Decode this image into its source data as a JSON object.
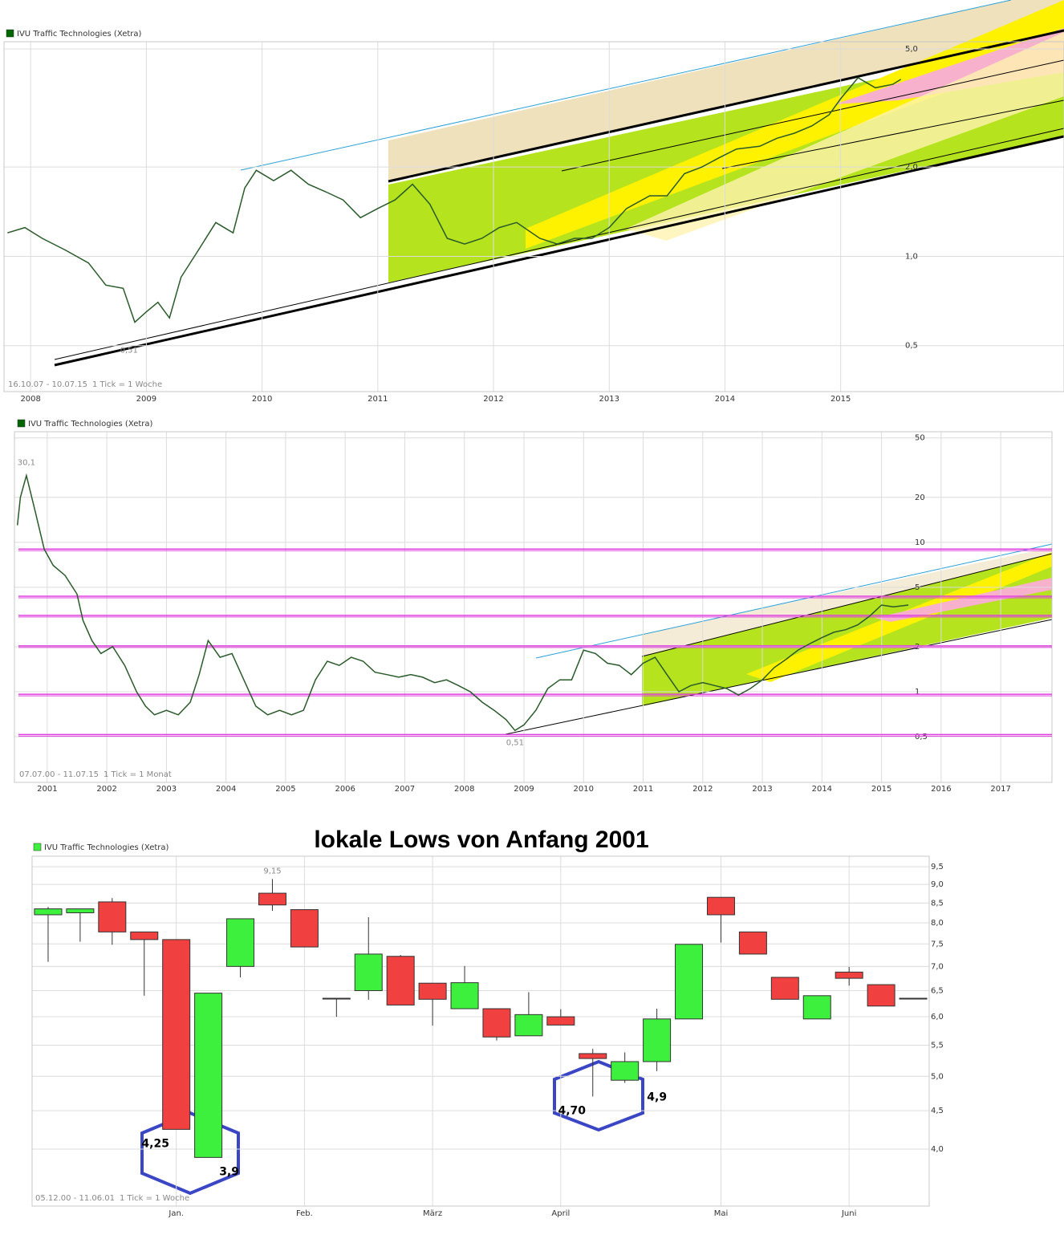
{
  "chart_data": [
    {
      "type": "line",
      "legend": "IVU Traffic Technologies (Xetra)",
      "note": "16.10.07 - 10.07.15",
      "tick_note": "1 Tick = 1 Woche",
      "log_scale": true,
      "grid": true,
      "x": [
        2007.8,
        2007.95,
        2008.1,
        2008.3,
        2008.5,
        2008.65,
        2008.8,
        2008.9,
        2009.0,
        2009.1,
        2009.2,
        2009.3,
        2009.45,
        2009.6,
        2009.75,
        2009.85,
        2009.95,
        2010.1,
        2010.25,
        2010.4,
        2010.55,
        2010.7,
        2010.85,
        2011.0,
        2011.15,
        2011.3,
        2011.45,
        2011.6,
        2011.75,
        2011.9,
        2012.05,
        2012.2,
        2012.4,
        2012.55,
        2012.7,
        2012.85,
        2013.0,
        2013.15,
        2013.35,
        2013.5,
        2013.65,
        2013.8,
        2013.95,
        2014.1,
        2014.3,
        2014.45,
        2014.6,
        2014.75,
        2014.9,
        2015.0,
        2015.15,
        2015.3,
        2015.45,
        2015.52
      ],
      "series": [
        {
          "name": "IVU Traffic Technologies (Xetra)",
          "color": "#2a5a2a",
          "values": [
            1.2,
            1.25,
            1.15,
            1.05,
            0.95,
            0.8,
            0.78,
            0.6,
            0.65,
            0.7,
            0.62,
            0.85,
            1.05,
            1.3,
            1.2,
            1.7,
            1.95,
            1.8,
            1.95,
            1.75,
            1.65,
            1.55,
            1.35,
            1.45,
            1.55,
            1.75,
            1.5,
            1.15,
            1.1,
            1.15,
            1.25,
            1.3,
            1.15,
            1.1,
            1.15,
            1.15,
            1.25,
            1.45,
            1.6,
            1.6,
            1.9,
            2.0,
            2.15,
            2.3,
            2.35,
            2.5,
            2.6,
            2.75,
            3.0,
            3.4,
            4.0,
            3.7,
            3.8,
            3.95
          ]
        }
      ],
      "xlim": [
        2007.77,
        2016.93
      ],
      "xticks": [
        2008,
        2009,
        2010,
        2011,
        2012,
        2013,
        2014,
        2015
      ],
      "ylim": [
        0.35,
        5.29
      ],
      "yticks": [
        {
          "value": 0.5,
          "label": "0,5"
        },
        {
          "value": 1,
          "label": "1,0"
        },
        {
          "value": 2,
          "label": "2,0"
        },
        {
          "value": 5,
          "label": "5,0"
        }
      ],
      "annotations": [
        {
          "text": "0,51",
          "x": 2008.85,
          "y": 0.51
        }
      ]
    },
    {
      "type": "line",
      "legend": "IVU Traffic Technologies (Xetra)",
      "note": "07.07.00 - 11.07.15",
      "tick_note": "1 Tick = 1 Monat",
      "log_scale": true,
      "grid": true,
      "x": [
        2000.5,
        2000.55,
        2000.65,
        2000.8,
        2000.95,
        2001.1,
        2001.3,
        2001.5,
        2001.6,
        2001.75,
        2001.9,
        2002.1,
        2002.3,
        2002.5,
        2002.65,
        2002.8,
        2003.0,
        2003.2,
        2003.4,
        2003.55,
        2003.7,
        2003.9,
        2004.1,
        2004.3,
        2004.5,
        2004.7,
        2004.9,
        2005.1,
        2005.3,
        2005.5,
        2005.7,
        2005.9,
        2006.1,
        2006.3,
        2006.5,
        2006.7,
        2006.9,
        2007.1,
        2007.3,
        2007.5,
        2007.7,
        2007.9,
        2008.1,
        2008.3,
        2008.5,
        2008.7,
        2008.85,
        2009.0,
        2009.2,
        2009.4,
        2009.6,
        2009.8,
        2010.0,
        2010.2,
        2010.4,
        2010.6,
        2010.8,
        2011.0,
        2011.2,
        2011.4,
        2011.6,
        2011.8,
        2012.0,
        2012.2,
        2012.4,
        2012.6,
        2012.8,
        2013.0,
        2013.2,
        2013.4,
        2013.6,
        2013.8,
        2014.0,
        2014.2,
        2014.4,
        2014.6,
        2014.8,
        2015.0,
        2015.2,
        2015.45
      ],
      "series": [
        {
          "name": "IVU Traffic Technologies (Xetra)",
          "color": "#2a5a2a",
          "values": [
            13,
            20,
            28,
            16,
            9,
            7,
            6,
            4.5,
            3,
            2.2,
            1.8,
            2.0,
            1.5,
            1.0,
            0.8,
            0.7,
            0.75,
            0.7,
            0.85,
            1.3,
            2.2,
            1.7,
            1.8,
            1.2,
            0.8,
            0.7,
            0.75,
            0.7,
            0.75,
            1.2,
            1.6,
            1.5,
            1.7,
            1.6,
            1.35,
            1.3,
            1.25,
            1.3,
            1.25,
            1.15,
            1.2,
            1.1,
            1.0,
            0.85,
            0.75,
            0.65,
            0.55,
            0.6,
            0.75,
            1.05,
            1.2,
            1.2,
            1.9,
            1.8,
            1.55,
            1.5,
            1.3,
            1.55,
            1.7,
            1.3,
            1.0,
            1.1,
            1.15,
            1.1,
            1.05,
            0.95,
            1.05,
            1.2,
            1.45,
            1.65,
            1.9,
            2.1,
            2.3,
            2.5,
            2.6,
            2.8,
            3.2,
            3.8,
            3.7,
            3.8
          ]
        }
      ],
      "xlim": [
        2000.45,
        2017.86
      ],
      "xticks": [
        2001,
        2002,
        2003,
        2004,
        2005,
        2006,
        2007,
        2008,
        2009,
        2010,
        2011,
        2012,
        2013,
        2014,
        2015,
        2016,
        2017
      ],
      "ylim": [
        0.247,
        55
      ],
      "yticks": [
        {
          "value": 0.5,
          "label": "0,5"
        },
        1,
        2,
        5,
        10,
        20,
        50
      ],
      "levels": [
        8.9,
        4.3,
        3.2,
        2.0,
        0.95,
        0.51
      ],
      "level_color": "#e040e0",
      "annotations": [
        {
          "text": "30,1",
          "x": 2000.65,
          "y": 30.1
        },
        {
          "text": "0,51",
          "x": 2008.85,
          "y": 0.51
        }
      ]
    },
    {
      "type": "candlestick",
      "title": "lokale Lows von Anfang 2001",
      "legend": "IVU Traffic Technologies (Xetra)",
      "note": "05.12.00 - 11.06.01",
      "tick_note": "1 Tick = 1 Woche",
      "log_scale": true,
      "grid": true,
      "up_color": "#3ef03e",
      "down_color": "#f04040",
      "categories": [
        null,
        null,
        null,
        null,
        "Jan.",
        null,
        null,
        null,
        "Feb.",
        null,
        null,
        null,
        "März",
        null,
        null,
        null,
        "April",
        null,
        null,
        null,
        null,
        "Mai",
        null,
        null,
        null,
        "Juni",
        null,
        null
      ],
      "open": [
        8.2,
        8.25,
        8.53,
        7.78,
        7.6,
        3.9,
        7.0,
        8.76,
        8.33,
        6.35,
        6.5,
        7.22,
        6.65,
        6.15,
        6.15,
        5.66,
        6.0,
        5.36,
        4.94,
        5.23,
        5.96,
        8.65,
        7.78,
        6.77,
        5.96,
        6.88,
        6.62,
        6.35
      ],
      "high": [
        8.4,
        8.35,
        8.63,
        7.78,
        7.6,
        6.45,
        8.1,
        9.15,
        8.33,
        6.35,
        8.14,
        7.25,
        6.65,
        7.01,
        6.15,
        6.47,
        6.14,
        5.44,
        5.38,
        6.15,
        7.49,
        8.65,
        7.78,
        6.77,
        6.4,
        6.99,
        6.62,
        6.35
      ],
      "low": [
        7.1,
        7.55,
        7.48,
        6.4,
        4.25,
        3.9,
        6.77,
        8.3,
        7.43,
        6.0,
        6.32,
        6.22,
        5.84,
        6.15,
        5.58,
        5.66,
        5.85,
        4.7,
        4.9,
        5.08,
        5.96,
        7.53,
        7.27,
        6.33,
        5.96,
        6.6,
        6.2,
        6.35
      ],
      "close": [
        8.35,
        8.35,
        7.78,
        7.6,
        4.25,
        6.45,
        8.1,
        8.45,
        7.43,
        6.35,
        7.27,
        6.22,
        6.33,
        6.66,
        5.64,
        6.04,
        5.85,
        5.28,
        5.23,
        5.96,
        7.49,
        8.2,
        7.27,
        6.33,
        6.4,
        6.75,
        6.2,
        6.35
      ],
      "ylim": [
        3.36,
        9.81
      ],
      "yticks": [
        {
          "value": 4,
          "label": "4,0"
        },
        {
          "value": 4.5,
          "label": "4,5"
        },
        {
          "value": 5,
          "label": "5,0"
        },
        {
          "value": 5.5,
          "label": "5,5"
        },
        {
          "value": 6,
          "label": "6,0"
        },
        {
          "value": 6.5,
          "label": "6,5"
        },
        {
          "value": 7,
          "label": "7,0"
        },
        {
          "value": 7.5,
          "label": "7,5"
        },
        {
          "value": 8,
          "label": "8,0"
        },
        {
          "value": 8.5,
          "label": "8,5"
        },
        {
          "value": 9,
          "label": "9,0"
        },
        {
          "value": 9.5,
          "label": "9,5"
        }
      ],
      "annotations": [
        {
          "text": "9,15",
          "index": 7,
          "y": 9.15
        },
        {
          "text": "4,25",
          "index": 4,
          "y": 4.25
        },
        {
          "text": "3,9",
          "index": 5,
          "y": 3.9
        },
        {
          "text": "4,70",
          "index": 17,
          "y": 4.7
        },
        {
          "text": "4,9",
          "index": 18,
          "y": 4.9
        }
      ]
    }
  ]
}
